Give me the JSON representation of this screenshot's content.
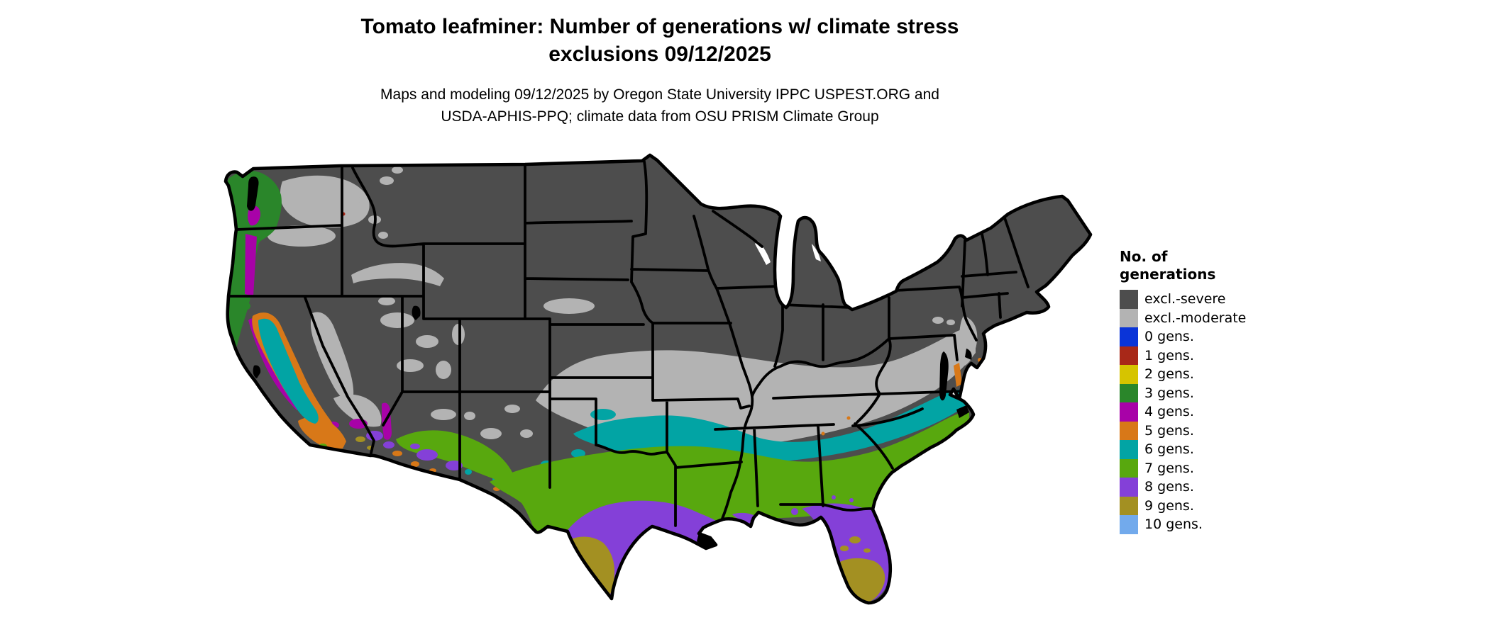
{
  "title": {
    "line1": "Tomato leafminer: Number of generations w/ climate stress",
    "line2": "exclusions 09/12/2025"
  },
  "subtitle": {
    "line1": "Maps and modeling 09/12/2025 by Oregon State University IPPC USPEST.ORG and",
    "line2": "USDA-APHIS-PPQ; climate data from OSU PRISM Climate Group"
  },
  "legend": {
    "title_line1": "No. of",
    "title_line2": "generations",
    "items": [
      {
        "key": "excl-severe",
        "label": "excl.-severe",
        "color": "#4d4d4d"
      },
      {
        "key": "excl-moderate",
        "label": "excl.-moderate",
        "color": "#b3b3b3"
      },
      {
        "key": "gens-0",
        "label": "0 gens.",
        "color": "#0a34d8"
      },
      {
        "key": "gens-1",
        "label": "1 gens.",
        "color": "#a82818"
      },
      {
        "key": "gens-2",
        "label": "2 gens.",
        "color": "#d6c400"
      },
      {
        "key": "gens-3",
        "label": "3 gens.",
        "color": "#2a862a"
      },
      {
        "key": "gens-4",
        "label": "4 gens.",
        "color": "#a802a8"
      },
      {
        "key": "gens-5",
        "label": "5 gens.",
        "color": "#d87818"
      },
      {
        "key": "gens-6",
        "label": "6 gens.",
        "color": "#02a4a4"
      },
      {
        "key": "gens-7",
        "label": "7 gens.",
        "color": "#58a80e"
      },
      {
        "key": "gens-8",
        "label": "8 gens.",
        "color": "#8440d8"
      },
      {
        "key": "gens-9",
        "label": "9 gens.",
        "color": "#a39022"
      },
      {
        "key": "gens-10",
        "label": "10 gens.",
        "color": "#72aaec"
      }
    ]
  },
  "map": {
    "outline_color": "#000000",
    "water_color": "#000000",
    "lake_color": "#ffffff",
    "background": "#ffffff"
  }
}
